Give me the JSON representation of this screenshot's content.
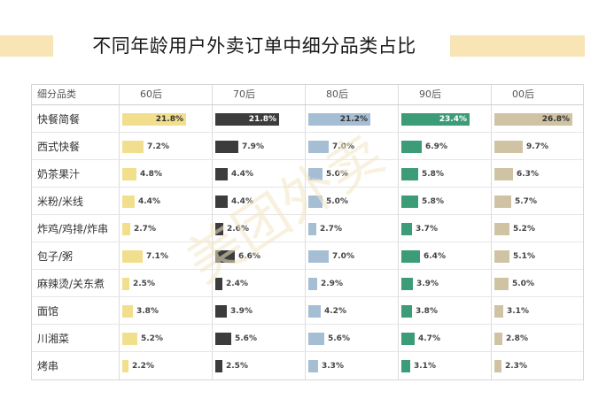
{
  "title": "不同年龄用户外卖订单中细分品类占比",
  "chart_data": {
    "type": "bar",
    "title": "不同年龄用户外卖订单中细分品类占比",
    "category_header": "细分品类",
    "categories": [
      "快餐简餐",
      "西式快餐",
      "奶茶果汁",
      "米粉/米线",
      "炸鸡/鸡排/炸串",
      "包子/粥",
      "麻辣烫/关东煮",
      "面馆",
      "川湘菜",
      "烤串"
    ],
    "value_format": "%",
    "series": [
      {
        "name": "60后",
        "color": "#f2df8e",
        "values": [
          21.8,
          7.2,
          4.8,
          4.4,
          2.7,
          7.1,
          2.5,
          3.8,
          5.2,
          2.2
        ]
      },
      {
        "name": "70后",
        "color": "#3c3c3c",
        "values": [
          21.8,
          7.9,
          4.4,
          4.4,
          2.6,
          6.6,
          2.4,
          3.9,
          5.6,
          2.5
        ]
      },
      {
        "name": "80后",
        "color": "#a6bed4",
        "values": [
          21.2,
          7.0,
          5.0,
          5.0,
          2.7,
          7.0,
          2.9,
          4.2,
          5.6,
          3.3
        ]
      },
      {
        "name": "90后",
        "color": "#3c9c78",
        "values": [
          23.4,
          6.9,
          5.8,
          5.8,
          3.7,
          6.4,
          3.9,
          3.8,
          4.7,
          3.1
        ]
      },
      {
        "name": "00后",
        "color": "#cfc3a4",
        "values": [
          26.8,
          9.7,
          6.3,
          5.7,
          5.2,
          5.1,
          5.0,
          3.1,
          2.8,
          2.3
        ]
      }
    ]
  },
  "watermark": "美团外卖"
}
